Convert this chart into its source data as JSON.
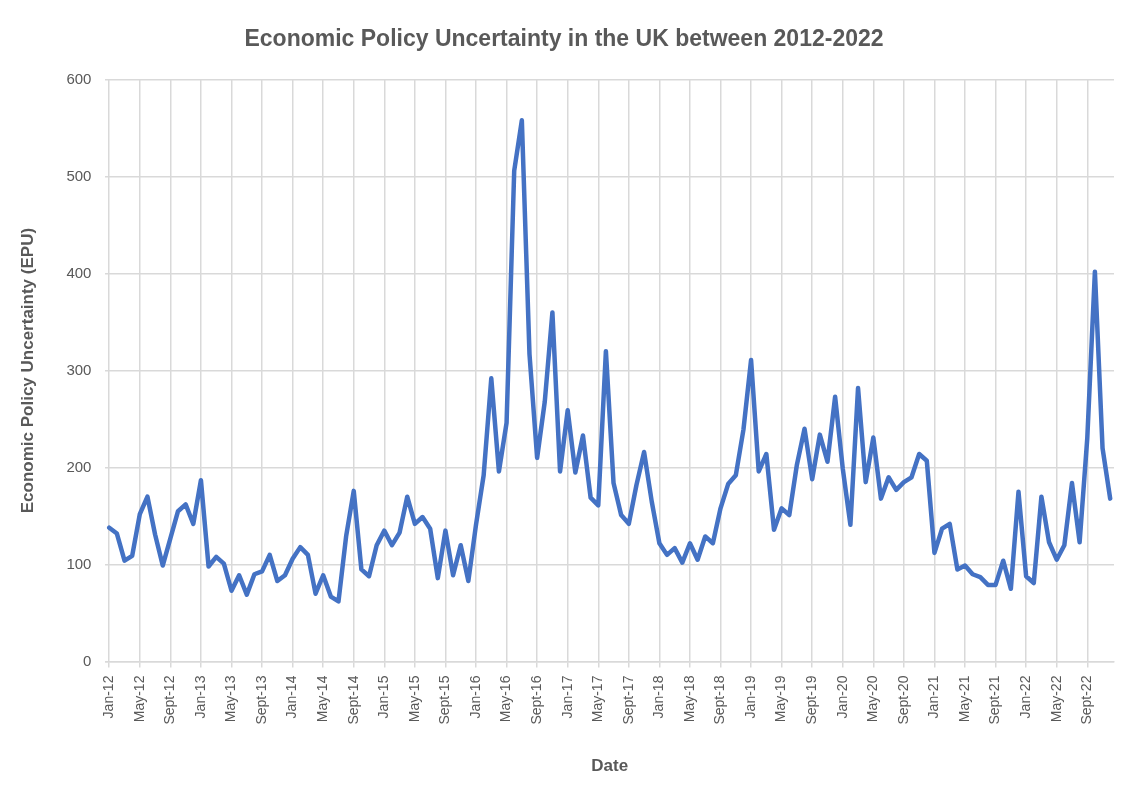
{
  "chart_data": {
    "type": "line",
    "title": "Economic Policy Uncertainty in the UK between 2012-2022",
    "xlabel": "Date",
    "ylabel": "Economic Policy Uncertainty (EPU)",
    "categories": [
      "Jan-12",
      null,
      null,
      null,
      "May-12",
      null,
      null,
      null,
      "Sept-12",
      null,
      null,
      null,
      "Jan-13",
      null,
      null,
      null,
      "May-13",
      null,
      null,
      null,
      "Sept-13",
      null,
      null,
      null,
      "Jan-14",
      null,
      null,
      null,
      "May-14",
      null,
      null,
      null,
      "Sept-14",
      null,
      null,
      null,
      "Jan-15",
      null,
      null,
      null,
      "May-15",
      null,
      null,
      null,
      "Sept-15",
      null,
      null,
      null,
      "Jan-16",
      null,
      null,
      null,
      "May-16",
      null,
      null,
      null,
      "Sept-16",
      null,
      null,
      null,
      "Jan-17",
      null,
      null,
      null,
      "May-17",
      null,
      null,
      null,
      "Sept-17",
      null,
      null,
      null,
      "Jan-18",
      null,
      null,
      null,
      "May-18",
      null,
      null,
      null,
      "Sept-18",
      null,
      null,
      null,
      "Jan-19",
      null,
      null,
      null,
      "May-19",
      null,
      null,
      null,
      "Sept-19",
      null,
      null,
      null,
      "Jan-20",
      null,
      null,
      null,
      "May-20",
      null,
      null,
      null,
      "Sept-20",
      null,
      null,
      null,
      "Jan-21",
      null,
      null,
      null,
      "May-21",
      null,
      null,
      null,
      "Sept-21",
      null,
      null,
      null,
      "Jan-22",
      null,
      null,
      null,
      "May-22",
      null,
      null,
      null,
      "Sept-22",
      null,
      null,
      null
    ],
    "series": [
      {
        "color": "#4472c4",
        "values": [
          138,
          132,
          104,
          109,
          152,
          170,
          131,
          99,
          127,
          155,
          162,
          142,
          187,
          98,
          108,
          101,
          73,
          89,
          69,
          90,
          93,
          110,
          83,
          89,
          106,
          118,
          110,
          70,
          89,
          67,
          62,
          129,
          176,
          95,
          88,
          120,
          135,
          120,
          133,
          170,
          142,
          149,
          137,
          86,
          135,
          89,
          120,
          83,
          141,
          192,
          292,
          196,
          246,
          506,
          558,
          317,
          210,
          268,
          360,
          196,
          259,
          195,
          233,
          169,
          161,
          320,
          184,
          151,
          142,
          182,
          216,
          165,
          122,
          110,
          117,
          102,
          122,
          105,
          129,
          122,
          158,
          183,
          192,
          239,
          311,
          196,
          214,
          136,
          158,
          151,
          203,
          240,
          188,
          234,
          206,
          273,
          199,
          141,
          282,
          185,
          231,
          168,
          190,
          177,
          185,
          190,
          214,
          207,
          112,
          137,
          142,
          95,
          99,
          90,
          87,
          79,
          79,
          104,
          75,
          175,
          88,
          81,
          170,
          123,
          105,
          120,
          184,
          123,
          230,
          402,
          220,
          168
        ]
      }
    ],
    "ylim": [
      0,
      600
    ],
    "yticks": [
      0,
      100,
      200,
      300,
      400,
      500,
      600
    ],
    "grid": true,
    "legend": false,
    "marker": "none",
    "line_style": "solid"
  }
}
